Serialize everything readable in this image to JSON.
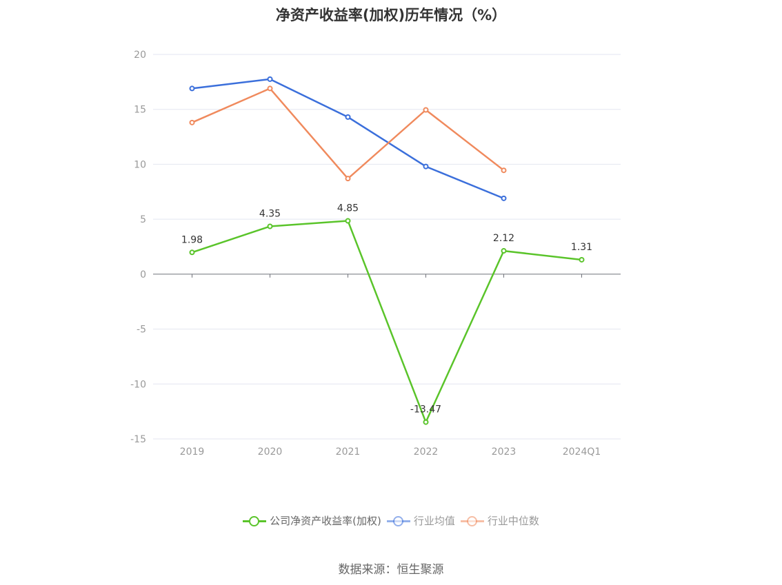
{
  "chart_data": {
    "type": "line",
    "title": "净资产收益率(加权)历年情况（%）",
    "categories": [
      "2019",
      "2020",
      "2021",
      "2022",
      "2023",
      "2024Q1"
    ],
    "ylim": [
      -15,
      20
    ],
    "yticks": [
      20,
      15,
      10,
      5,
      0,
      -5,
      -10,
      -15
    ],
    "grid": true,
    "legend_position": "bottom-center",
    "series": [
      {
        "name": "公司净资产收益率(加权)",
        "color": "#5ac42a",
        "values": [
          1.98,
          4.35,
          4.85,
          -13.47,
          2.12,
          1.31
        ],
        "labels": [
          "1.98",
          "4.35",
          "4.85",
          "-13.47",
          "2.12",
          "1.31"
        ]
      },
      {
        "name": "行业均值",
        "color": "#3b6fdb",
        "values": [
          16.9,
          17.75,
          14.3,
          9.8,
          6.9,
          null
        ]
      },
      {
        "name": "行业中位数",
        "color": "#f08a5d",
        "values": [
          13.8,
          16.9,
          8.7,
          14.95,
          9.45,
          null
        ]
      }
    ]
  },
  "footer": {
    "source": "数据来源：恒生聚源"
  }
}
